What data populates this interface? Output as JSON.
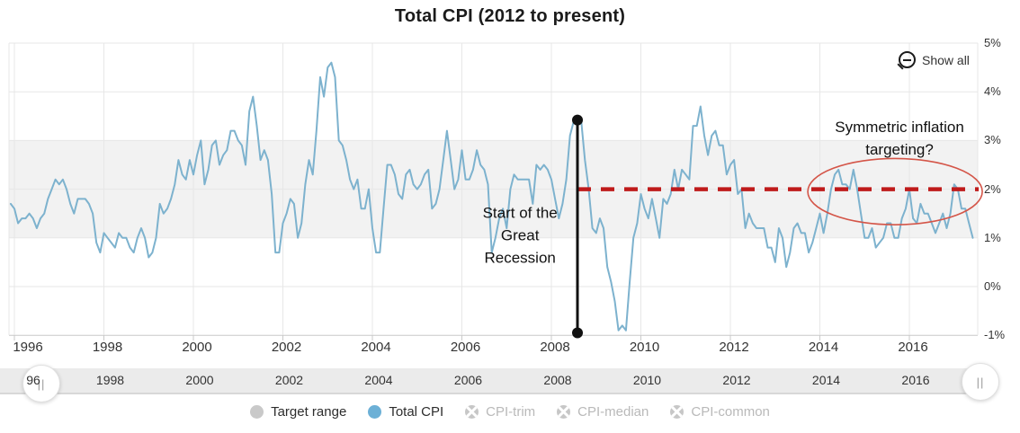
{
  "title": "Total CPI (2012 to present)",
  "toolbar": {
    "show_all_label": "Show all"
  },
  "colors": {
    "line": "#7db2ce",
    "band": "#f2f2f2",
    "grid": "#e7e7e7",
    "axis_line": "#c9c9c9",
    "dashed_red": "#bf1b1b",
    "ellipse_red": "#d45548",
    "annotation_black": "#111111",
    "legend_blue": "#6cb0d6",
    "legend_gray": "#c9c9c9"
  },
  "chart_data": {
    "type": "line",
    "title": "Total CPI (2012 to present)",
    "x_axis": {
      "ticks": [
        1996,
        1998,
        2000,
        2002,
        2004,
        2006,
        2008,
        2010,
        2012,
        2014,
        2016
      ]
    },
    "y_axis": {
      "position": "right",
      "min": -1,
      "max": 5,
      "tick_values": [
        5,
        4,
        3,
        2,
        1,
        0,
        -1
      ],
      "tick_labels": [
        "5%",
        "4%",
        "3%",
        "2%",
        "1%",
        "0%",
        "-1%"
      ]
    },
    "target_range_band": {
      "from": 1,
      "to": 3
    },
    "series": [
      {
        "name": "Total CPI",
        "color": "#7db2ce",
        "start_year": 1995,
        "start_month": 12,
        "frequency": "monthly",
        "values": [
          1.7,
          1.6,
          1.3,
          1.4,
          1.4,
          1.5,
          1.4,
          1.2,
          1.4,
          1.5,
          1.8,
          2.0,
          2.2,
          2.1,
          2.2,
          2.0,
          1.7,
          1.5,
          1.8,
          1.8,
          1.8,
          1.7,
          1.5,
          0.9,
          0.7,
          1.1,
          1.0,
          0.9,
          0.8,
          1.1,
          1.0,
          1.0,
          0.8,
          0.7,
          1.0,
          1.2,
          1.0,
          0.6,
          0.7,
          1.0,
          1.7,
          1.5,
          1.6,
          1.8,
          2.1,
          2.6,
          2.3,
          2.2,
          2.6,
          2.3,
          2.7,
          3.0,
          2.1,
          2.4,
          2.9,
          3.0,
          2.5,
          2.7,
          2.8,
          3.2,
          3.2,
          3.0,
          2.9,
          2.5,
          3.6,
          3.9,
          3.3,
          2.6,
          2.8,
          2.6,
          1.9,
          0.7,
          0.7,
          1.3,
          1.5,
          1.8,
          1.7,
          1.0,
          1.3,
          2.1,
          2.6,
          2.3,
          3.2,
          4.3,
          3.9,
          4.5,
          4.6,
          4.3,
          3.0,
          2.9,
          2.6,
          2.2,
          2.0,
          2.2,
          1.6,
          1.6,
          2.0,
          1.2,
          0.7,
          0.7,
          1.6,
          2.5,
          2.5,
          2.3,
          1.9,
          1.8,
          2.3,
          2.4,
          2.1,
          2.0,
          2.1,
          2.3,
          2.4,
          1.6,
          1.7,
          2.0,
          2.6,
          3.2,
          2.6,
          2.0,
          2.2,
          2.8,
          2.2,
          2.2,
          2.4,
          2.8,
          2.5,
          2.4,
          2.1,
          0.7,
          1.0,
          1.4,
          1.6,
          1.2,
          2.0,
          2.3,
          2.2,
          2.2,
          2.2,
          2.2,
          1.7,
          2.5,
          2.4,
          2.5,
          2.4,
          2.2,
          1.8,
          1.4,
          1.7,
          2.2,
          3.1,
          3.4,
          3.5,
          3.4,
          2.6,
          2.0,
          1.2,
          1.1,
          1.4,
          1.2,
          0.4,
          0.1,
          -0.3,
          -0.9,
          -0.8,
          -0.9,
          0.1,
          1.0,
          1.3,
          1.9,
          1.6,
          1.4,
          1.8,
          1.4,
          1.0,
          1.8,
          1.7,
          1.9,
          2.4,
          2.0,
          2.4,
          2.3,
          2.2,
          3.3,
          3.3,
          3.7,
          3.1,
          2.7,
          3.1,
          3.2,
          2.9,
          2.9,
          2.3,
          2.5,
          2.6,
          1.9,
          2.0,
          1.2,
          1.5,
          1.3,
          1.2,
          1.2,
          1.2,
          0.8,
          0.8,
          0.5,
          1.2,
          1.0,
          0.4,
          0.7,
          1.2,
          1.3,
          1.1,
          1.1,
          0.7,
          0.9,
          1.2,
          1.5,
          1.1,
          1.5,
          2.0,
          2.3,
          2.4,
          2.1,
          2.1,
          2.0,
          2.4,
          2.0,
          1.5,
          1.0,
          1.0,
          1.2,
          0.8,
          0.9,
          1.0,
          1.3,
          1.3,
          1.0,
          1.0,
          1.4,
          1.6,
          2.0,
          1.4,
          1.3,
          1.7,
          1.5,
          1.5,
          1.3,
          1.1,
          1.3,
          1.5,
          1.2,
          1.5,
          2.1,
          2.0,
          1.6,
          1.6,
          1.3,
          1.0
        ]
      }
    ],
    "annotations": {
      "recession_line": {
        "x_year": 2008.583,
        "value_top": 3.42,
        "value_bottom": -0.95
      },
      "recession_text": {
        "lines": [
          "Start of the",
          "Great",
          "Recession"
        ],
        "x_year": 2007.3,
        "value_center": 1.05
      },
      "target_dashed_line": {
        "value": 2.0,
        "x_start_year": 2008.583,
        "x_end_year": 2017.55
      },
      "symmetric_ellipse": {
        "x_center_year": 2015.68,
        "value_center": 1.95,
        "rx_years": 1.95,
        "ry_values": 0.68
      },
      "symmetric_text": {
        "lines": [
          "Symmetric inflation",
          "targeting?"
        ],
        "x_year": 2015.78,
        "value_center": 3.04
      }
    },
    "legend": [
      {
        "label": "Target range",
        "state": "active",
        "icon": "gray-dot"
      },
      {
        "label": "Total CPI",
        "state": "active",
        "icon": "blue-dot"
      },
      {
        "label": "CPI-trim",
        "state": "disabled",
        "icon": "crossed-dot"
      },
      {
        "label": "CPI-median",
        "state": "disabled",
        "icon": "crossed-dot"
      },
      {
        "label": "CPI-common",
        "state": "disabled",
        "icon": "crossed-dot"
      }
    ]
  },
  "navigator": {
    "tick_labels": [
      "96",
      "1998",
      "2000",
      "2002",
      "2004",
      "2006",
      "2008",
      "2010",
      "2012",
      "2014",
      "2016"
    ],
    "tick_years": [
      1996,
      1998,
      2000,
      2002,
      2004,
      2006,
      2008,
      2010,
      2012,
      2014,
      2016
    ],
    "handle_glyph": "||"
  }
}
